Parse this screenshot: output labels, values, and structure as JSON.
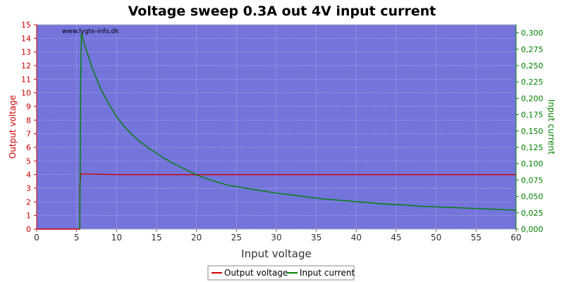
{
  "chart_data": {
    "type": "line",
    "title": "Voltage sweep 0.3A out 4V input current",
    "watermark": "www.lygte-info.dk",
    "xlabel": "Input voltage",
    "ylabel_left": "Output voltage",
    "ylabel_right": "Input current",
    "xlim": [
      0,
      60
    ],
    "ylim_left": [
      0,
      15
    ],
    "ylim_right": [
      0,
      0.3125
    ],
    "x_ticks": [
      "0",
      "5",
      "10",
      "15",
      "20",
      "25",
      "30",
      "35",
      "40",
      "45",
      "50",
      "55",
      "60"
    ],
    "y_left_ticks": [
      "0",
      "1",
      "2",
      "3",
      "4",
      "5",
      "6",
      "7",
      "8",
      "9",
      "10",
      "11",
      "12",
      "13",
      "14",
      "15"
    ],
    "y_right_ticks": [
      "0,000",
      "0,025",
      "0,050",
      "0,075",
      "0,100",
      "0,125",
      "0,150",
      "0,175",
      "0,200",
      "0,225",
      "0,250",
      "0,275",
      "0,300"
    ],
    "grid": true,
    "legend_position": "bottom-center",
    "colors": {
      "plot_background": "#7474db",
      "output_voltage": "#cc0000",
      "input_current": "#008000",
      "grid": "#b8b8f0"
    },
    "series": [
      {
        "name": "Output voltage",
        "axis": "left",
        "x": [
          0,
          5.4,
          5.4,
          5.5,
          5.6,
          10,
          20,
          30,
          40,
          50,
          60
        ],
        "y": [
          0,
          0,
          3.1,
          4.0,
          4.05,
          4.0,
          4.0,
          4.0,
          4.0,
          4.0,
          4.0
        ]
      },
      {
        "name": "Input current",
        "axis": "right",
        "x": [
          5.4,
          5.5,
          5.6,
          6,
          7,
          8,
          9,
          10,
          11,
          12,
          13,
          14,
          15,
          16,
          17,
          18,
          19,
          20,
          22,
          24,
          26,
          28,
          30,
          32,
          34,
          36,
          38,
          40,
          42,
          44,
          46,
          48,
          50,
          52,
          54,
          56,
          58,
          60
        ],
        "y": [
          0.0,
          0.22,
          0.299,
          0.282,
          0.245,
          0.215,
          0.192,
          0.172,
          0.156,
          0.144,
          0.133,
          0.124,
          0.116,
          0.108,
          0.101,
          0.095,
          0.089,
          0.083,
          0.074,
          0.067,
          0.063,
          0.059,
          0.055,
          0.052,
          0.049,
          0.046,
          0.044,
          0.042,
          0.04,
          0.038,
          0.037,
          0.035,
          0.034,
          0.033,
          0.032,
          0.031,
          0.03,
          0.029
        ]
      }
    ]
  }
}
